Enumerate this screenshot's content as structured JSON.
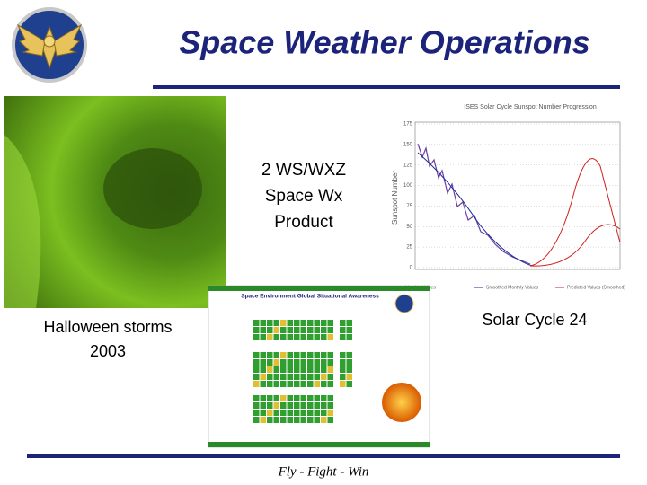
{
  "header": {
    "title": "Space Weather Operations"
  },
  "product_label": [
    "2 WS/WXZ",
    "Space Wx",
    "Product"
  ],
  "left_caption": [
    "Halloween storms",
    "2003"
  ],
  "right_caption": "Solar Cycle 24",
  "sunspot_chart": {
    "title": "ISES Solar Cycle Sunspot Number Progression",
    "y_label": "Sunspot Number",
    "y_ticks": [
      "175",
      "150",
      "125",
      "100",
      "75",
      "50",
      "25",
      "0"
    ],
    "legend": [
      "Monthly Values",
      "Smoothed Monthly Values",
      "Predicted Values (Smoothed)"
    ]
  },
  "product_image": {
    "title": "Space Environment Global Situational Awareness"
  },
  "footer": {
    "motto": "Fly - Fight - Win"
  }
}
